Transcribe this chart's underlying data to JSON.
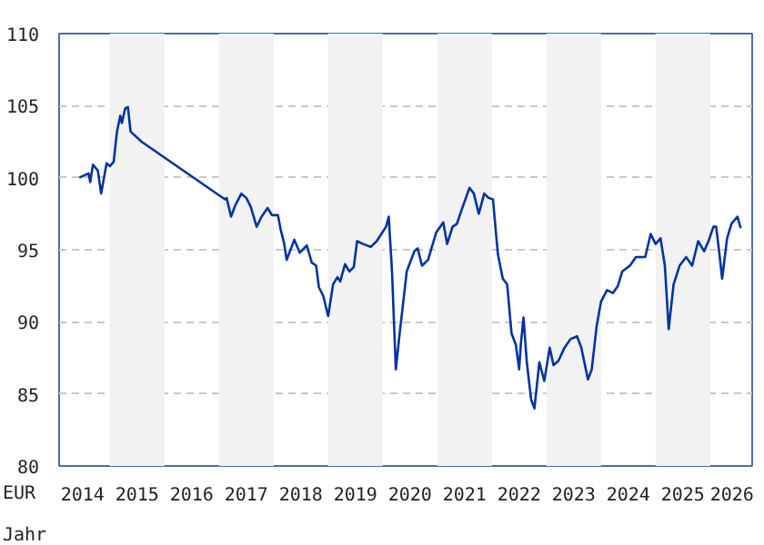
{
  "chart_data": {
    "type": "line",
    "xlabel": "Jahr",
    "ylabel": "EUR",
    "x": [
      2014.44,
      2014.61,
      2014.64,
      2014.69,
      2014.78,
      2014.84,
      2014.94,
      2015.0,
      2015.07,
      2015.13,
      2015.19,
      2015.22,
      2015.28,
      2015.33,
      2015.38,
      2015.58,
      2017.11,
      2017.14,
      2017.22,
      2017.3,
      2017.41,
      2017.5,
      2017.58,
      2017.69,
      2017.78,
      2017.89,
      2017.97,
      2018.08,
      2018.13,
      2018.19,
      2018.24,
      2018.38,
      2018.48,
      2018.61,
      2018.7,
      2018.78,
      2018.83,
      2018.91,
      2019.0,
      2019.09,
      2019.17,
      2019.22,
      2019.31,
      2019.39,
      2019.47,
      2019.53,
      2019.64,
      2019.78,
      2019.89,
      2020.06,
      2020.11,
      2020.17,
      2020.24,
      2020.31,
      2020.44,
      2020.58,
      2020.64,
      2020.72,
      2020.83,
      2020.98,
      2021.11,
      2021.18,
      2021.28,
      2021.36,
      2021.44,
      2021.59,
      2021.67,
      2021.76,
      2021.86,
      2021.94,
      2022.02,
      2022.11,
      2022.2,
      2022.28,
      2022.36,
      2022.44,
      2022.5,
      2022.53,
      2022.58,
      2022.64,
      2022.72,
      2022.78,
      2022.87,
      2022.96,
      2023.06,
      2023.13,
      2023.22,
      2023.33,
      2023.44,
      2023.56,
      2023.64,
      2023.76,
      2023.83,
      2023.92,
      2024.0,
      2024.11,
      2024.22,
      2024.31,
      2024.39,
      2024.53,
      2024.64,
      2024.81,
      2024.91,
      2025.0,
      2025.09,
      2025.17,
      2025.24,
      2025.33,
      2025.44,
      2025.56,
      2025.67,
      2025.78,
      2025.89,
      2025.97,
      2026.06,
      2026.11,
      2026.17,
      2026.22,
      2026.31,
      2026.39,
      2026.5,
      2026.56
    ],
    "series": [
      {
        "color": "#0033a0",
        "values": [
          100.0,
          100.3,
          99.7,
          100.9,
          100.5,
          98.9,
          101.0,
          100.8,
          101.1,
          103.2,
          104.3,
          103.8,
          104.8,
          104.9,
          103.2,
          102.5,
          98.5,
          98.6,
          97.3,
          98.1,
          98.9,
          98.6,
          98.0,
          96.6,
          97.3,
          97.9,
          97.4,
          97.4,
          96.4,
          95.5,
          94.3,
          95.7,
          94.8,
          95.3,
          94.1,
          93.9,
          92.4,
          91.8,
          90.4,
          92.6,
          93.1,
          92.8,
          94.0,
          93.5,
          93.8,
          95.6,
          95.4,
          95.2,
          95.6,
          96.6,
          97.3,
          93.5,
          86.7,
          89.2,
          93.5,
          94.9,
          95.1,
          93.9,
          94.3,
          96.2,
          96.9,
          95.4,
          96.6,
          96.8,
          97.7,
          99.3,
          98.9,
          97.5,
          98.9,
          98.6,
          98.5,
          94.7,
          93.0,
          92.6,
          89.2,
          88.4,
          86.7,
          88.4,
          90.3,
          87.2,
          84.6,
          84.0,
          87.2,
          85.9,
          88.2,
          87.0,
          87.3,
          88.2,
          88.8,
          89.0,
          88.2,
          86.0,
          86.7,
          89.7,
          91.4,
          92.2,
          92.0,
          92.5,
          93.5,
          93.9,
          94.5,
          94.5,
          96.1,
          95.4,
          95.8,
          93.9,
          89.5,
          92.6,
          93.9,
          94.5,
          93.9,
          95.6,
          94.9,
          95.6,
          96.6,
          96.6,
          94.7,
          93.0,
          95.8,
          96.8,
          97.3,
          96.5
        ]
      }
    ],
    "xlim": [
      2014.07,
      2026.77
    ],
    "ylim": [
      80,
      110
    ],
    "xticks": [
      {
        "value": 2014.5,
        "label": "2014"
      },
      {
        "value": 2015.5,
        "label": "2015"
      },
      {
        "value": 2016.5,
        "label": "2016"
      },
      {
        "value": 2017.5,
        "label": "2017"
      },
      {
        "value": 2018.5,
        "label": "2018"
      },
      {
        "value": 2019.5,
        "label": "2019"
      },
      {
        "value": 2020.5,
        "label": "2020"
      },
      {
        "value": 2021.5,
        "label": "2021"
      },
      {
        "value": 2022.5,
        "label": "2022"
      },
      {
        "value": 2023.5,
        "label": "2023"
      },
      {
        "value": 2024.5,
        "label": "2024"
      },
      {
        "value": 2025.5,
        "label": "2025"
      },
      {
        "value": 2026.4,
        "label": "2026"
      }
    ],
    "yticks": [
      80,
      85,
      90,
      95,
      100,
      105,
      110
    ],
    "bands": [
      {
        "axis": "x",
        "from": 2015,
        "to": 2016,
        "color": "#f2f2f2"
      },
      {
        "axis": "x",
        "from": 2017,
        "to": 2018,
        "color": "#f2f2f2"
      },
      {
        "axis": "x",
        "from": 2019,
        "to": 2020,
        "color": "#f2f2f2"
      },
      {
        "axis": "x",
        "from": 2021,
        "to": 2022,
        "color": "#f2f2f2"
      },
      {
        "axis": "x",
        "from": 2023,
        "to": 2024,
        "color": "#f2f2f2"
      },
      {
        "axis": "x",
        "from": 2025,
        "to": 2026,
        "color": "#f2f2f2"
      }
    ],
    "grid": "y",
    "marker": "none",
    "line_style": "solid"
  }
}
